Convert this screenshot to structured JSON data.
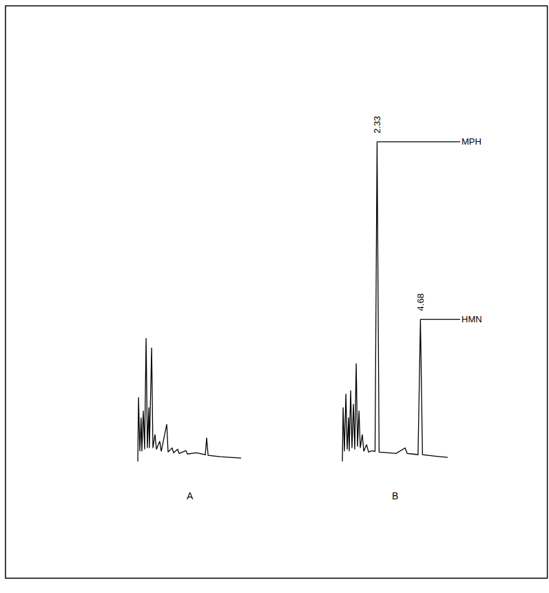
{
  "chart_data": [
    {
      "type": "line",
      "title": "A",
      "color": "#000000",
      "tick_labels": false,
      "grid": false,
      "xlim": [
        0.4,
        6.2
      ],
      "ylim": [
        -15,
        470
      ],
      "x": [
        0.45,
        0.49,
        0.56,
        0.63,
        0.67,
        0.75,
        0.82,
        0.9,
        0.97,
        1.05,
        1.08,
        1.2,
        1.27,
        1.38,
        1.46,
        1.64,
        1.72,
        2.02,
        2.09,
        2.31,
        2.39,
        2.61,
        2.69,
        3.06,
        3.14,
        3.62,
        4.11,
        4.18,
        4.26,
        4.93,
        6.05
      ],
      "values": [
        -10,
        85,
        5,
        55,
        5,
        65,
        8,
        172,
        10,
        70,
        10,
        158,
        10,
        30,
        8,
        20,
        5,
        45,
        4,
        10,
        3,
        8,
        2,
        6,
        1,
        3,
        0,
        25,
        -1,
        -3,
        -5
      ]
    },
    {
      "type": "line",
      "title": "B",
      "color": "#000000",
      "tick_labels": false,
      "grid": false,
      "xlim": [
        0.4,
        6.2
      ],
      "ylim": [
        -15,
        470
      ],
      "x": [
        0.45,
        0.49,
        0.56,
        0.64,
        0.71,
        0.79,
        0.82,
        0.9,
        0.97,
        1.05,
        1.12,
        1.2,
        1.27,
        1.35,
        1.42,
        1.53,
        1.61,
        1.76,
        1.87,
        2.06,
        2.22,
        2.33,
        2.44,
        2.8,
        3.36,
        3.85,
        3.96,
        4.29,
        4.55,
        4.68,
        4.79,
        5.41,
        6.16
      ],
      "values": [
        -10,
        70,
        5,
        90,
        8,
        55,
        5,
        95,
        10,
        75,
        8,
        135,
        12,
        65,
        10,
        30,
        5,
        15,
        4,
        6,
        5,
        462,
        4,
        3,
        2,
        10,
        2,
        1,
        0,
        200,
        0,
        -2,
        -4
      ],
      "peaks": [
        {
          "time": 2.33,
          "height": 462,
          "name": "MPH"
        },
        {
          "time": 4.68,
          "height": 200,
          "name": "HMN"
        }
      ]
    }
  ]
}
